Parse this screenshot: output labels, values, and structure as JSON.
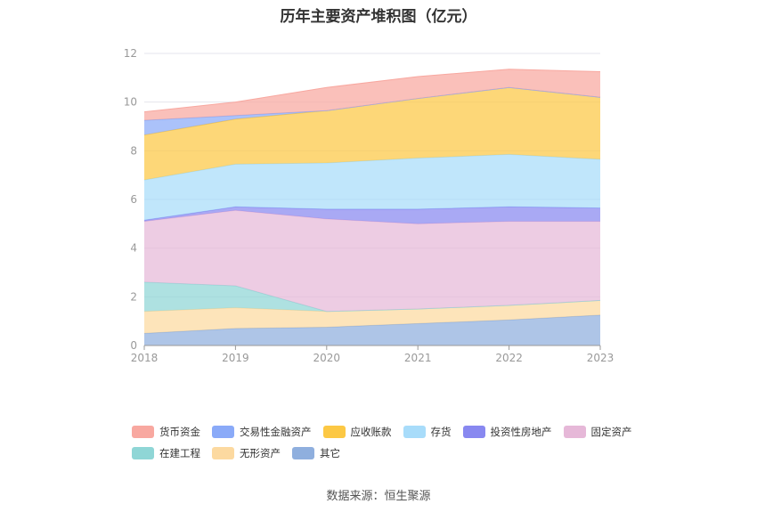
{
  "chart_data": {
    "type": "area",
    "stacked": true,
    "title": "历年主要资产堆积图（亿元）",
    "x": [
      "2018",
      "2019",
      "2020",
      "2021",
      "2022",
      "2023"
    ],
    "ylim": [
      0,
      12
    ],
    "yticks": [
      "0",
      "2",
      "4",
      "6",
      "8",
      "10",
      "12"
    ],
    "grid": true,
    "legend_position": "bottom",
    "series": [
      {
        "name": "其它",
        "color": "#8fafde",
        "values": [
          0.5,
          0.7,
          0.75,
          0.9,
          1.05,
          1.25
        ]
      },
      {
        "name": "无形资产",
        "color": "#fcd9a0",
        "values": [
          0.9,
          0.85,
          0.65,
          0.6,
          0.6,
          0.6
        ]
      },
      {
        "name": "在建工程",
        "color": "#8fd6d6",
        "values": [
          1.2,
          0.9,
          0.0,
          0.0,
          0.0,
          0.0
        ]
      },
      {
        "name": "固定资产",
        "color": "#e6b8d8",
        "values": [
          2.5,
          3.1,
          3.8,
          3.5,
          3.45,
          3.25
        ]
      },
      {
        "name": "投资性房地产",
        "color": "#8888f0",
        "values": [
          0.05,
          0.15,
          0.4,
          0.6,
          0.6,
          0.55
        ]
      },
      {
        "name": "存货",
        "color": "#a8dcfa",
        "values": [
          1.65,
          1.75,
          1.9,
          2.1,
          2.15,
          2.0
        ]
      },
      {
        "name": "应收账款",
        "color": "#fcc844",
        "values": [
          1.85,
          1.85,
          2.15,
          2.45,
          2.75,
          2.55
        ]
      },
      {
        "name": "交易性金融资产",
        "color": "#8aaaf8",
        "values": [
          0.6,
          0.15,
          0.0,
          0.0,
          0.0,
          0.0
        ]
      },
      {
        "name": "货币资金",
        "color": "#f8a8a0",
        "values": [
          0.35,
          0.55,
          0.95,
          0.9,
          0.75,
          1.05
        ]
      }
    ]
  },
  "legend": [
    {
      "label": "货币资金",
      "color": "#f8a8a0"
    },
    {
      "label": "交易性金融资产",
      "color": "#8aaaf8"
    },
    {
      "label": "应收账款",
      "color": "#fcc844"
    },
    {
      "label": "存货",
      "color": "#a8dcfa"
    },
    {
      "label": "投资性房地产",
      "color": "#8888f0"
    },
    {
      "label": "固定资产",
      "color": "#e6b8d8"
    },
    {
      "label": "在建工程",
      "color": "#8fd6d6"
    },
    {
      "label": "无形资产",
      "color": "#fcd9a0"
    },
    {
      "label": "其它",
      "color": "#8fafde"
    }
  ],
  "source": "数据来源：恒生聚源"
}
